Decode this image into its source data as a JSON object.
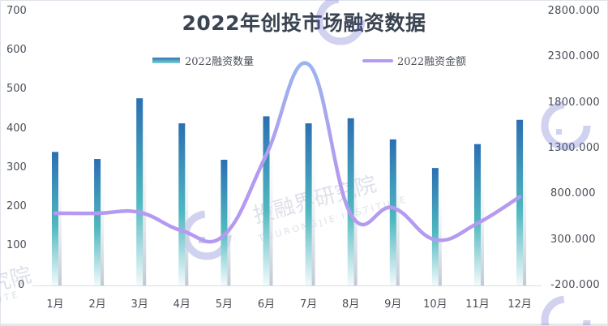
{
  "chart_data": {
    "type": "bar+line",
    "title": "2022年创投市场融资数据",
    "categories": [
      "1月",
      "2月",
      "3月",
      "4月",
      "5月",
      "6月",
      "7月",
      "8月",
      "9月",
      "10月",
      "11月",
      "12月"
    ],
    "series": [
      {
        "name": "2022融资数量",
        "type": "bar",
        "axis": "left",
        "values": [
          341,
          323,
          478,
          414,
          321,
          432,
          414,
          427,
          373,
          300,
          361,
          423
        ]
      },
      {
        "name": "2022融资金额",
        "type": "line",
        "axis": "right",
        "smooth": true,
        "values": [
          590,
          590,
          600,
          400,
          350,
          1230,
          2220,
          580,
          650,
          300,
          480,
          770
        ]
      }
    ],
    "y_left": {
      "ticks": [
        "0",
        "100",
        "200",
        "300",
        "400",
        "500",
        "600",
        "700"
      ],
      "ylim": [
        0,
        700
      ]
    },
    "y_right": {
      "ticks": [
        "-200.000",
        "300.000",
        "800.000",
        "1300.000",
        "1800.000",
        "2300.000",
        "2800.000"
      ],
      "ylim": [
        -200,
        2800
      ]
    },
    "xlabel": "",
    "ylabel": "",
    "legend_position": "top",
    "grid": false,
    "colors": {
      "bar_top": "#2c6fb3",
      "bar_mid": "#4fb8c0",
      "bar_bottom": "#e8f6f7",
      "line": "#b49af0",
      "line_peak": "#9ab4ef"
    }
  },
  "legend": {
    "bar_label": "2022融资数量",
    "line_label": "2022融资金额"
  },
  "watermark": {
    "text_cn": "投融界研究院",
    "text_en": "TOURONGJIE INSTITUTE"
  }
}
